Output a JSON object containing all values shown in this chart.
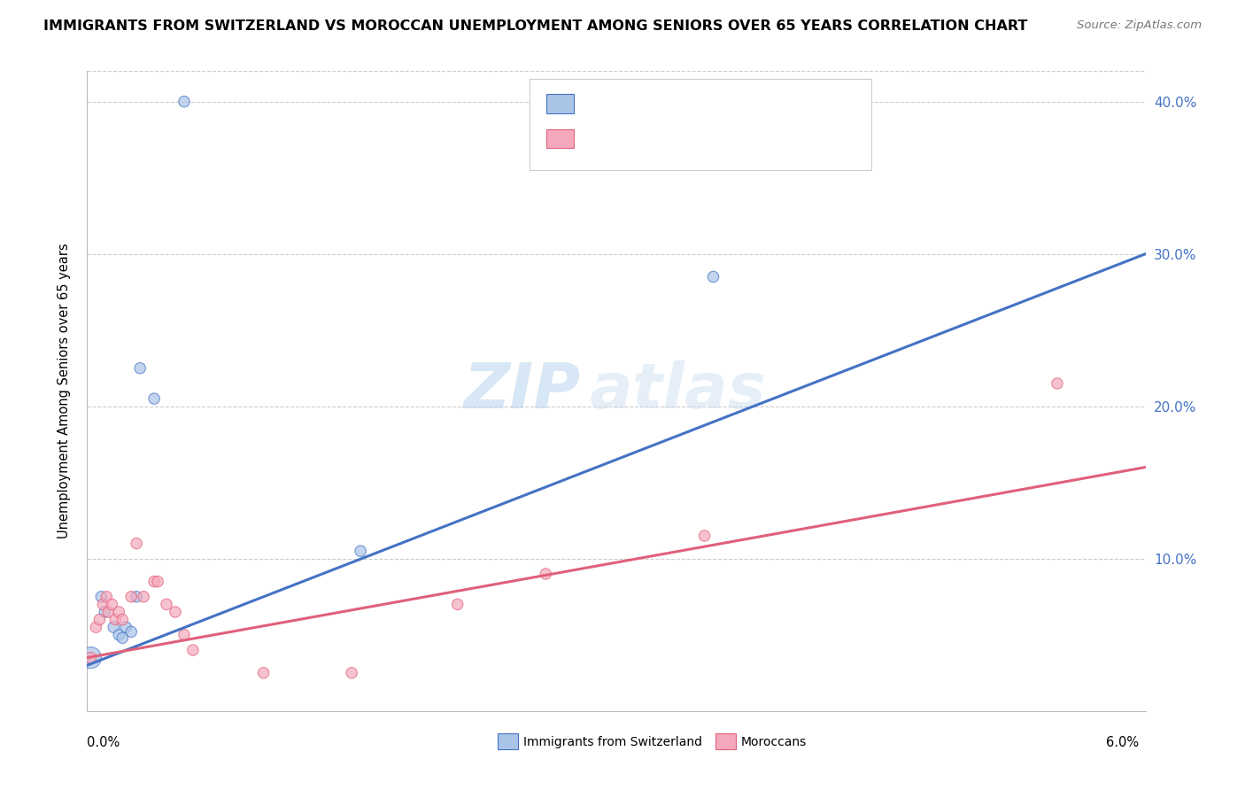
{
  "title": "IMMIGRANTS FROM SWITZERLAND VS MOROCCAN UNEMPLOYMENT AMONG SENIORS OVER 65 YEARS CORRELATION CHART",
  "source": "Source: ZipAtlas.com",
  "ylabel": "Unemployment Among Seniors over 65 years",
  "xlim": [
    0.0,
    6.0
  ],
  "ylim": [
    0.0,
    42.0
  ],
  "ytick_vals": [
    10,
    20,
    30,
    40
  ],
  "ytick_labels": [
    "10.0%",
    "20.0%",
    "30.0%",
    "40.0%"
  ],
  "watermark": "ZIPatlas",
  "swiss_color": "#aac4e8",
  "moroccan_color": "#f5a8bc",
  "swiss_line_color": "#4472c4",
  "moroccan_line_color": "#e0607a",
  "swiss_points": [
    [
      0.02,
      3.5,
      300
    ],
    [
      0.08,
      7.5,
      80
    ],
    [
      0.1,
      6.5,
      80
    ],
    [
      0.15,
      5.5,
      80
    ],
    [
      0.18,
      5.0,
      80
    ],
    [
      0.22,
      5.5,
      80
    ],
    [
      0.28,
      7.5,
      80
    ],
    [
      0.3,
      22.5,
      80
    ],
    [
      0.38,
      20.5,
      80
    ],
    [
      0.55,
      40.0,
      80
    ],
    [
      1.55,
      10.5,
      80
    ],
    [
      3.55,
      28.5,
      80
    ],
    [
      0.25,
      5.2,
      80
    ],
    [
      0.2,
      4.8,
      80
    ]
  ],
  "moroccan_points": [
    [
      0.02,
      3.5,
      80
    ],
    [
      0.05,
      5.5,
      80
    ],
    [
      0.07,
      6.0,
      80
    ],
    [
      0.09,
      7.0,
      80
    ],
    [
      0.11,
      7.5,
      80
    ],
    [
      0.12,
      6.5,
      80
    ],
    [
      0.14,
      7.0,
      80
    ],
    [
      0.16,
      6.0,
      80
    ],
    [
      0.18,
      6.5,
      80
    ],
    [
      0.2,
      6.0,
      80
    ],
    [
      0.25,
      7.5,
      80
    ],
    [
      0.28,
      11.0,
      80
    ],
    [
      0.32,
      7.5,
      80
    ],
    [
      0.38,
      8.5,
      80
    ],
    [
      0.4,
      8.5,
      80
    ],
    [
      0.45,
      7.0,
      80
    ],
    [
      0.5,
      6.5,
      80
    ],
    [
      0.55,
      5.0,
      80
    ],
    [
      0.6,
      4.0,
      80
    ],
    [
      1.0,
      2.5,
      80
    ],
    [
      1.5,
      2.5,
      80
    ],
    [
      2.1,
      7.0,
      80
    ],
    [
      2.6,
      9.0,
      80
    ],
    [
      3.5,
      11.5,
      80
    ],
    [
      5.5,
      21.5,
      80
    ]
  ],
  "swiss_reg_line": [
    0.0,
    6.0
  ],
  "moroccan_reg_line": [
    0.0,
    6.0
  ]
}
